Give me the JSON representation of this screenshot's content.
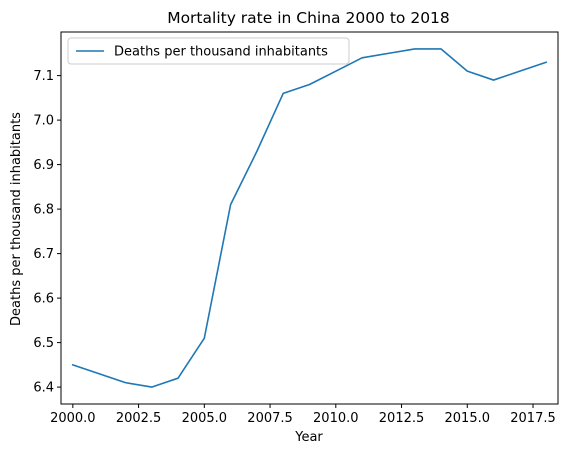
{
  "chart_data": {
    "type": "line",
    "title": "Mortality rate in China 2000 to 2018",
    "xlabel": "Year",
    "ylabel": "Deaths per thousand inhabitants",
    "xlim": [
      1999.55,
      2018.45
    ],
    "ylim": [
      6.362,
      7.198
    ],
    "xticks": [
      2000.0,
      2002.5,
      2005.0,
      2007.5,
      2010.0,
      2012.5,
      2015.0,
      2017.5
    ],
    "xtick_labels": [
      "2000.0",
      "2002.5",
      "2005.0",
      "2007.5",
      "2010.0",
      "2012.5",
      "2015.0",
      "2017.5"
    ],
    "yticks": [
      6.4,
      6.5,
      6.6,
      6.7,
      6.8,
      6.9,
      7.0,
      7.1
    ],
    "ytick_labels": [
      "6.4",
      "6.5",
      "6.6",
      "6.7",
      "6.8",
      "6.9",
      "7.0",
      "7.1"
    ],
    "grid": false,
    "legend": "upper-left",
    "series": [
      {
        "name": "Deaths per thousand inhabitants",
        "color": "#1f77b4",
        "x": [
          2000,
          2001,
          2002,
          2003,
          2004,
          2005,
          2006,
          2007,
          2008,
          2009,
          2010,
          2011,
          2012,
          2013,
          2014,
          2015,
          2016,
          2017,
          2018
        ],
        "y": [
          6.45,
          6.43,
          6.41,
          6.4,
          6.42,
          6.51,
          6.81,
          6.93,
          7.06,
          7.08,
          7.11,
          7.14,
          7.15,
          7.16,
          7.16,
          7.11,
          7.09,
          7.11,
          7.13
        ]
      }
    ]
  }
}
